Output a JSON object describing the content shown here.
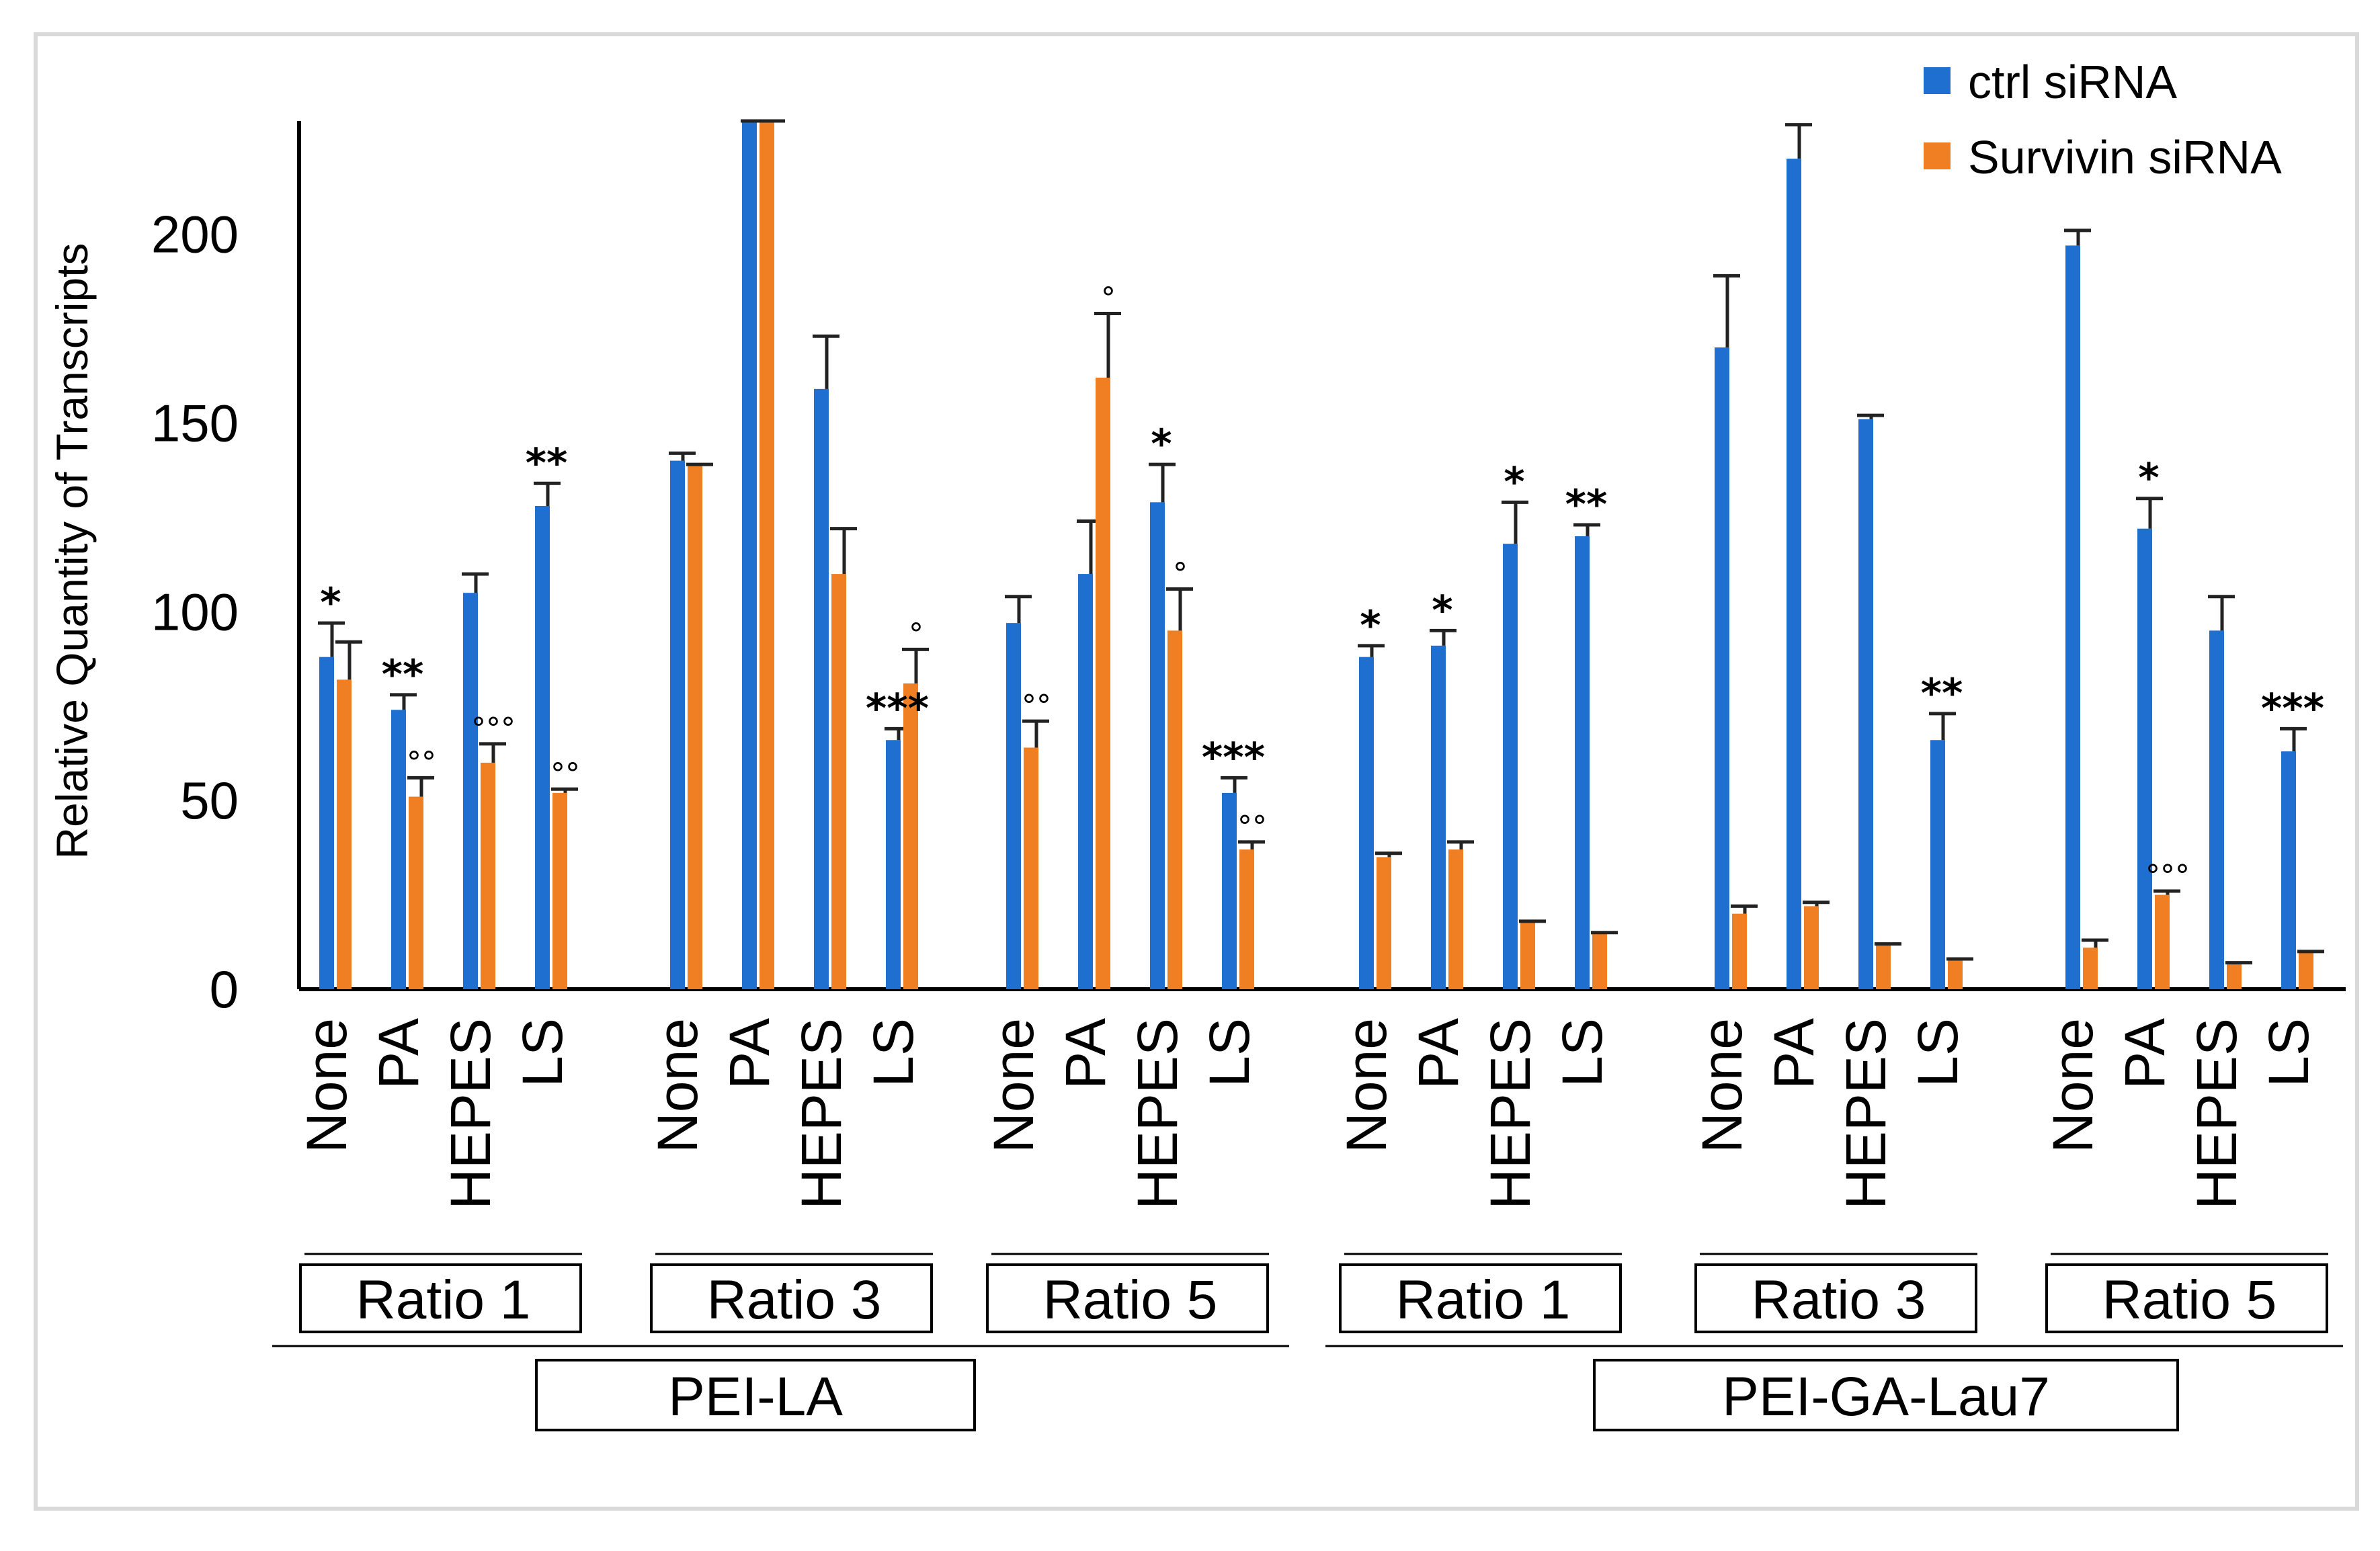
{
  "colors": {
    "ctrl": "#1f6fd1",
    "survivin": "#f07f24",
    "axis": "#000000"
  },
  "chart_data": {
    "type": "bar",
    "title": "",
    "ylabel": "Relative Quantity of Transcripts",
    "ylim": [
      0,
      230
    ],
    "yticks": [
      0,
      50,
      100,
      150,
      200
    ],
    "legend": {
      "placement": "top-right"
    },
    "series_names": [
      "ctrl siRNA",
      "Survivin siRNA"
    ],
    "groups": [
      {
        "reagent": "PEI-LA",
        "ratios": [
          {
            "label": "Ratio 1",
            "conditions": [
              {
                "label": "None",
                "ctrl": 88,
                "ctrl_err": 9,
                "surv": 82,
                "surv_err": 10,
                "ctrl_sig": "*",
                "surv_sig": ""
              },
              {
                "label": "PA",
                "ctrl": 74,
                "ctrl_err": 4,
                "surv": 51,
                "surv_err": 5,
                "ctrl_sig": "**",
                "surv_sig": "°°"
              },
              {
                "label": "HEPES",
                "ctrl": 105,
                "ctrl_err": 5,
                "surv": 60,
                "surv_err": 5,
                "ctrl_sig": "",
                "surv_sig": "°°°"
              },
              {
                "label": "LS",
                "ctrl": 128,
                "ctrl_err": 6,
                "surv": 52,
                "surv_err": 1,
                "ctrl_sig": "**",
                "surv_sig": "°°"
              }
            ]
          },
          {
            "label": "Ratio 3",
            "conditions": [
              {
                "label": "None",
                "ctrl": 140,
                "ctrl_err": 2,
                "surv": 139,
                "surv_err": 0,
                "ctrl_sig": "",
                "surv_sig": ""
              },
              {
                "label": "PA",
                "ctrl": 230,
                "ctrl_err": 0,
                "surv": 230,
                "surv_err": 0,
                "ctrl_sig": "",
                "surv_sig": ""
              },
              {
                "label": "HEPES",
                "ctrl": 159,
                "ctrl_err": 14,
                "surv": 110,
                "surv_err": 12,
                "ctrl_sig": "",
                "surv_sig": ""
              },
              {
                "label": "LS",
                "ctrl": 66,
                "ctrl_err": 3,
                "surv": 81,
                "surv_err": 9,
                "ctrl_sig": "***",
                "surv_sig": "°"
              }
            ]
          },
          {
            "label": "Ratio 5",
            "conditions": [
              {
                "label": "None",
                "ctrl": 97,
                "ctrl_err": 7,
                "surv": 64,
                "surv_err": 7,
                "ctrl_sig": "",
                "surv_sig": "°°"
              },
              {
                "label": "PA",
                "ctrl": 110,
                "ctrl_err": 14,
                "surv": 162,
                "surv_err": 17,
                "ctrl_sig": "",
                "surv_sig": "°"
              },
              {
                "label": "HEPES",
                "ctrl": 129,
                "ctrl_err": 10,
                "surv": 95,
                "surv_err": 11,
                "ctrl_sig": "*",
                "surv_sig": "°"
              },
              {
                "label": "LS",
                "ctrl": 52,
                "ctrl_err": 4,
                "surv": 37,
                "surv_err": 2,
                "ctrl_sig": "***",
                "surv_sig": "°°"
              }
            ]
          }
        ]
      },
      {
        "reagent": "PEI-GA-Lau7",
        "ratios": [
          {
            "label": "Ratio 1",
            "conditions": [
              {
                "label": "None",
                "ctrl": 88,
                "ctrl_err": 3,
                "surv": 35,
                "surv_err": 1,
                "ctrl_sig": "*",
                "surv_sig": ""
              },
              {
                "label": "PA",
                "ctrl": 91,
                "ctrl_err": 4,
                "surv": 37,
                "surv_err": 2,
                "ctrl_sig": "*",
                "surv_sig": ""
              },
              {
                "label": "HEPES",
                "ctrl": 118,
                "ctrl_err": 11,
                "surv": 18,
                "surv_err": 0,
                "ctrl_sig": "*",
                "surv_sig": ""
              },
              {
                "label": "LS",
                "ctrl": 120,
                "ctrl_err": 3,
                "surv": 15,
                "surv_err": 0,
                "ctrl_sig": "**",
                "surv_sig": ""
              }
            ]
          },
          {
            "label": "Ratio 3",
            "conditions": [
              {
                "label": "None",
                "ctrl": 170,
                "ctrl_err": 19,
                "surv": 20,
                "surv_err": 2,
                "ctrl_sig": "",
                "surv_sig": ""
              },
              {
                "label": "PA",
                "ctrl": 220,
                "ctrl_err": 9,
                "surv": 22,
                "surv_err": 1,
                "ctrl_sig": "",
                "surv_sig": ""
              },
              {
                "label": "HEPES",
                "ctrl": 151,
                "ctrl_err": 1,
                "surv": 12,
                "surv_err": 0,
                "ctrl_sig": "",
                "surv_sig": ""
              },
              {
                "label": "LS",
                "ctrl": 66,
                "ctrl_err": 7,
                "surv": 8,
                "surv_err": 0,
                "ctrl_sig": "**",
                "surv_sig": ""
              }
            ]
          },
          {
            "label": "Ratio 5",
            "conditions": [
              {
                "label": "None",
                "ctrl": 197,
                "ctrl_err": 4,
                "surv": 11,
                "surv_err": 2,
                "ctrl_sig": "",
                "surv_sig": ""
              },
              {
                "label": "PA",
                "ctrl": 122,
                "ctrl_err": 8,
                "surv": 25,
                "surv_err": 1,
                "ctrl_sig": "*",
                "surv_sig": "°°°"
              },
              {
                "label": "HEPES",
                "ctrl": 95,
                "ctrl_err": 9,
                "surv": 7,
                "surv_err": 0,
                "ctrl_sig": "",
                "surv_sig": ""
              },
              {
                "label": "LS",
                "ctrl": 63,
                "ctrl_err": 6,
                "surv": 10,
                "surv_err": 0,
                "ctrl_sig": "***",
                "surv_sig": ""
              }
            ]
          }
        ]
      }
    ]
  }
}
